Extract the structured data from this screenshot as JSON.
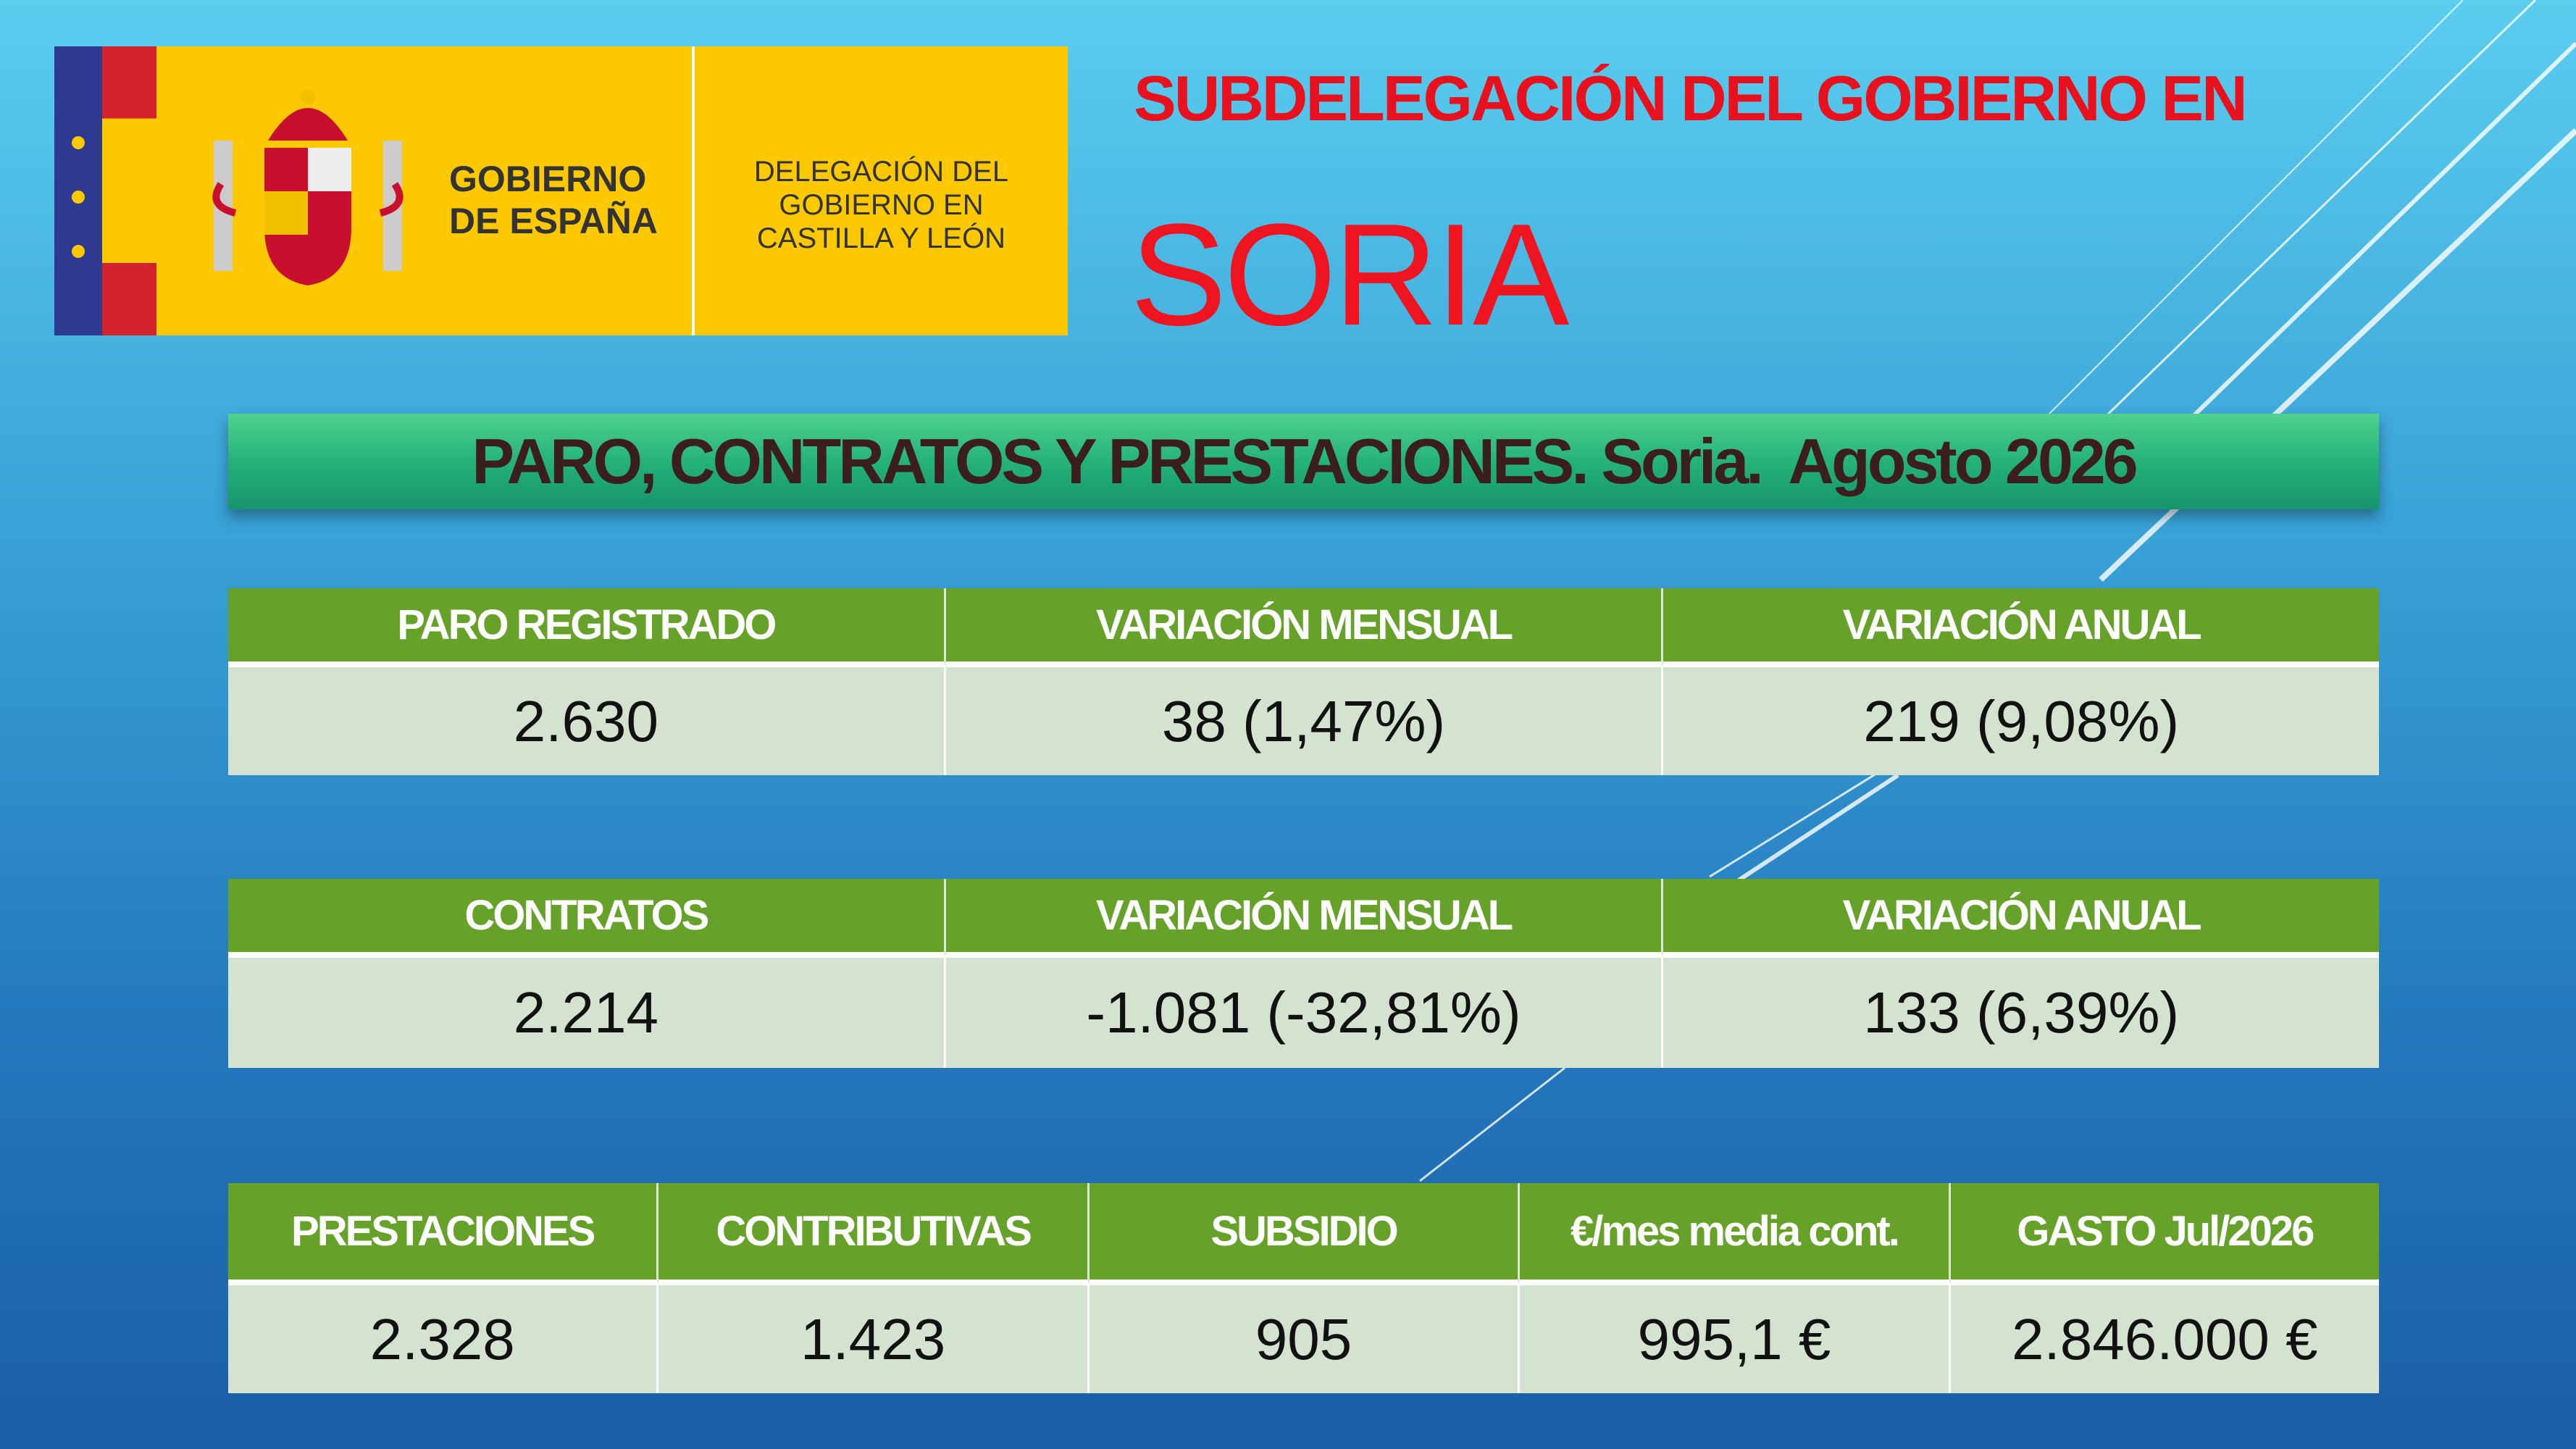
{
  "logo": {
    "gobierno": [
      "GOBIERNO",
      "DE ESPAÑA"
    ],
    "delegacion": [
      "DELEGACIÓN DEL",
      "GOBIERNO EN",
      "CASTILLA Y LEÓN"
    ]
  },
  "header": {
    "subtitle": "SUBDELEGACIÓN DEL GOBIERNO EN",
    "title": "SORIA"
  },
  "banner": "PARO, CONTRATOS Y PRESTACIONES. Soria.  Agosto 2026",
  "tables": [
    {
      "headers": [
        "PARO REGISTRADO",
        "VARIACIÓN MENSUAL",
        "VARIACIÓN ANUAL"
      ],
      "row": [
        "2.630",
        "38 (1,47%)",
        "219 (9,08%)"
      ]
    },
    {
      "headers": [
        "CONTRATOS",
        "VARIACIÓN MENSUAL",
        "VARIACIÓN ANUAL"
      ],
      "row": [
        "2.214",
        "-1.081  (-32,81%)",
        "133 (6,39%)"
      ]
    },
    {
      "headers": [
        "PRESTACIONES",
        "CONTRIBUTIVAS",
        "SUBSIDIO",
        "€/mes media cont.",
        "GASTO Jul/2026"
      ],
      "row": [
        "2.328",
        "1.423",
        "905",
        "995,1 €",
        "2.846.000 €"
      ]
    }
  ]
}
